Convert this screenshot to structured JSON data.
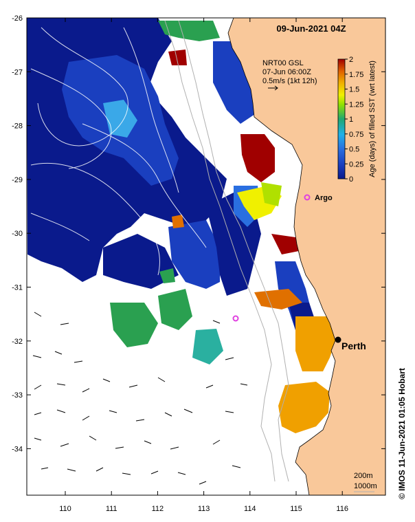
{
  "map": {
    "date_title": "09-Jun-2021 04Z",
    "lon_ticks": [
      "110",
      "111",
      "112",
      "113",
      "114",
      "115",
      "116"
    ],
    "lat_ticks": [
      "-26",
      "-27",
      "-28",
      "-29",
      "-30",
      "-31",
      "-32",
      "-33",
      "-34"
    ],
    "current_legend": {
      "line1": "NRT00 GSL",
      "line2": "07-Jun 06:00Z",
      "line3": "0.5m/s (1kt 12h)"
    },
    "colorbar": {
      "label": "Age (days) of filled SST (wrt latest)",
      "ticks": [
        "2",
        "1.75",
        "1.5",
        "1.25",
        "1",
        "0.75",
        "0.5",
        "0.25",
        "0"
      ]
    },
    "places": {
      "argo": "Argo",
      "perth": "Perth"
    },
    "isobaths": {
      "a": "200m",
      "b": "1000m"
    },
    "credit": "© IMOS 11-Jun-2021 01:05 Hobart",
    "colors": {
      "land": "#f9c89a",
      "cloud_free": "#ffffff",
      "argo_marker": "#e040e0",
      "age_scale": [
        "#0a1a8c",
        "#1a3fbf",
        "#2a6fe0",
        "#3aa8e8",
        "#2ab0a0",
        "#2aa050",
        "#b0e000",
        "#f0f000",
        "#f0a000",
        "#e07000",
        "#a00000"
      ]
    }
  }
}
